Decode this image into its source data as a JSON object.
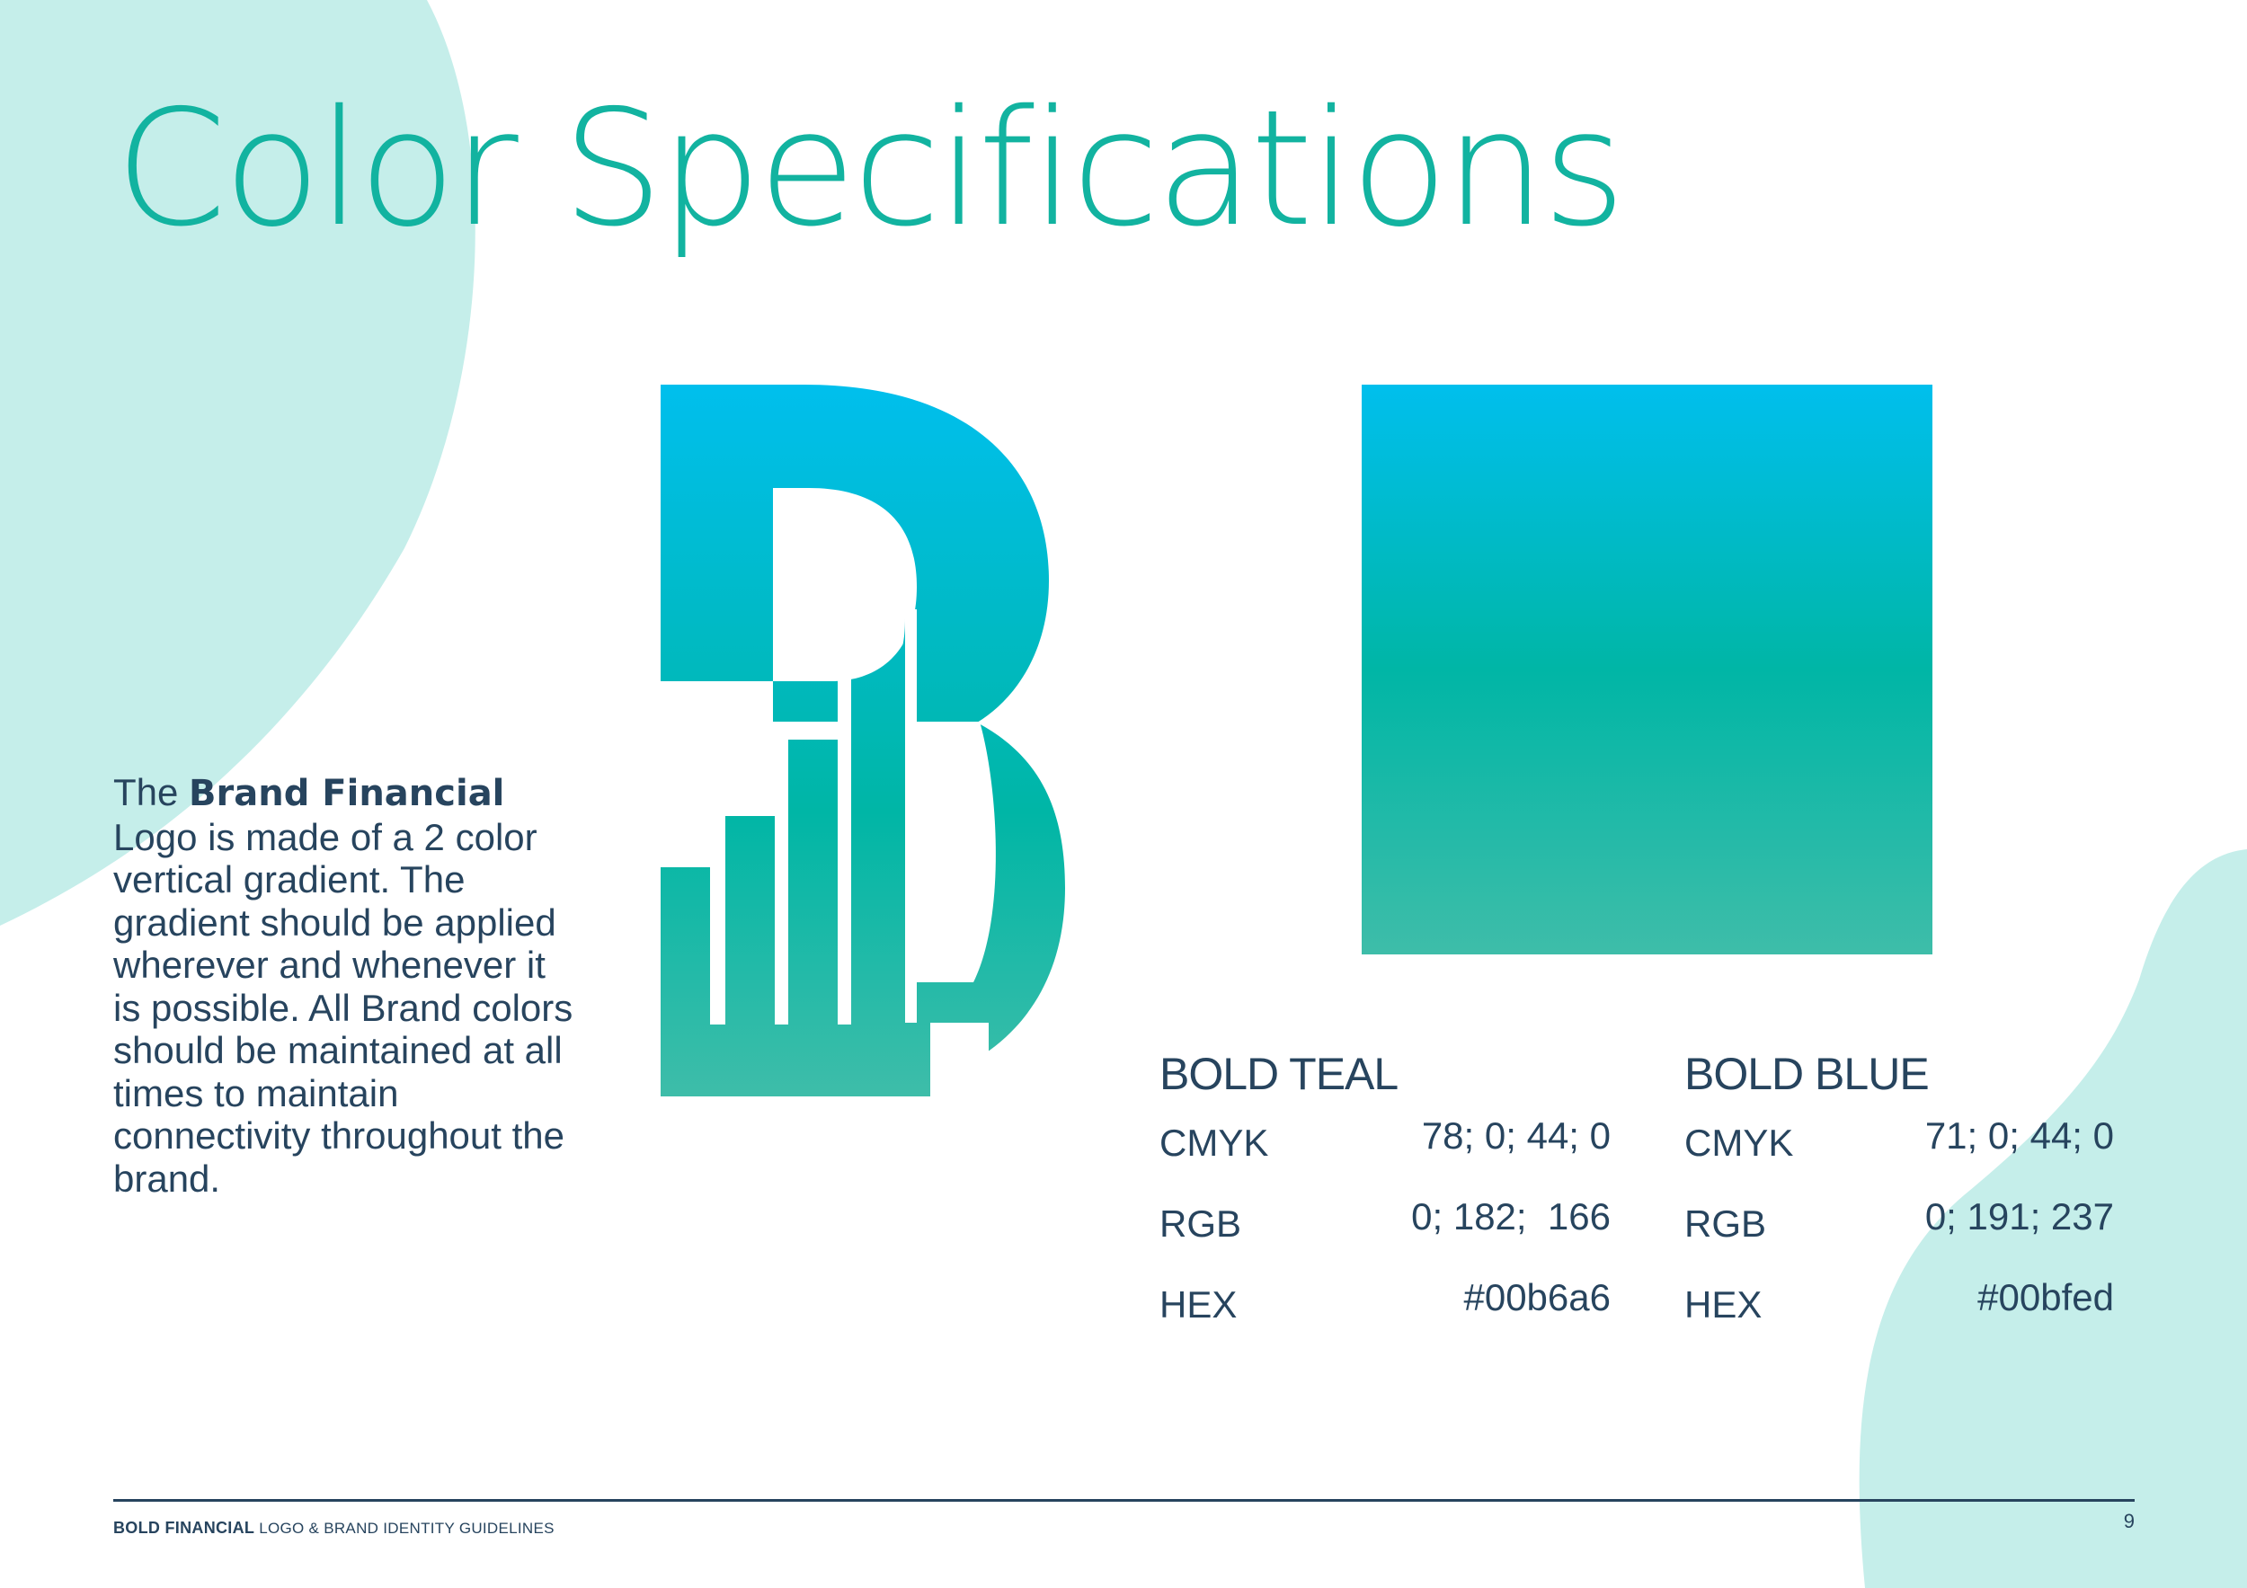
{
  "page": {
    "title": "Color Specifications",
    "intro": {
      "prefix": "The ",
      "brand": "Brand Financial",
      "body": "Logo is made of a 2 color vertical gradient. The gradient should be applied wherever and whenever it is possible. All Brand colors should be maintained at all times to maintain connectivity throughout the brand."
    }
  },
  "colors": [
    {
      "name": "BOLD TEAL",
      "specs": [
        {
          "label": "CMYK",
          "value": "78; 0; 44; 0"
        },
        {
          "label": "RGB",
          "value": "0; 182;  166"
        },
        {
          "label": "HEX",
          "value": "#00b6a6"
        }
      ]
    },
    {
      "name": "BOLD BLUE",
      "specs": [
        {
          "label": "CMYK",
          "value": "71; 0; 44; 0"
        },
        {
          "label": "RGB",
          "value": "0; 191; 237"
        },
        {
          "label": "HEX",
          "value": "#00bfed"
        }
      ]
    }
  ],
  "palette": {
    "teal": "#00b6a6",
    "blue": "#00bfed",
    "gradient_bottom": "#3ebda9",
    "title_color": "#12b3a0",
    "text_color": "#27445e",
    "blob_color": "#c5eeea"
  },
  "footer": {
    "brand": "BOLD FINANCIAL",
    "rest": " LOGO & BRAND IDENTITY GUIDELINES",
    "page_number": "9"
  }
}
